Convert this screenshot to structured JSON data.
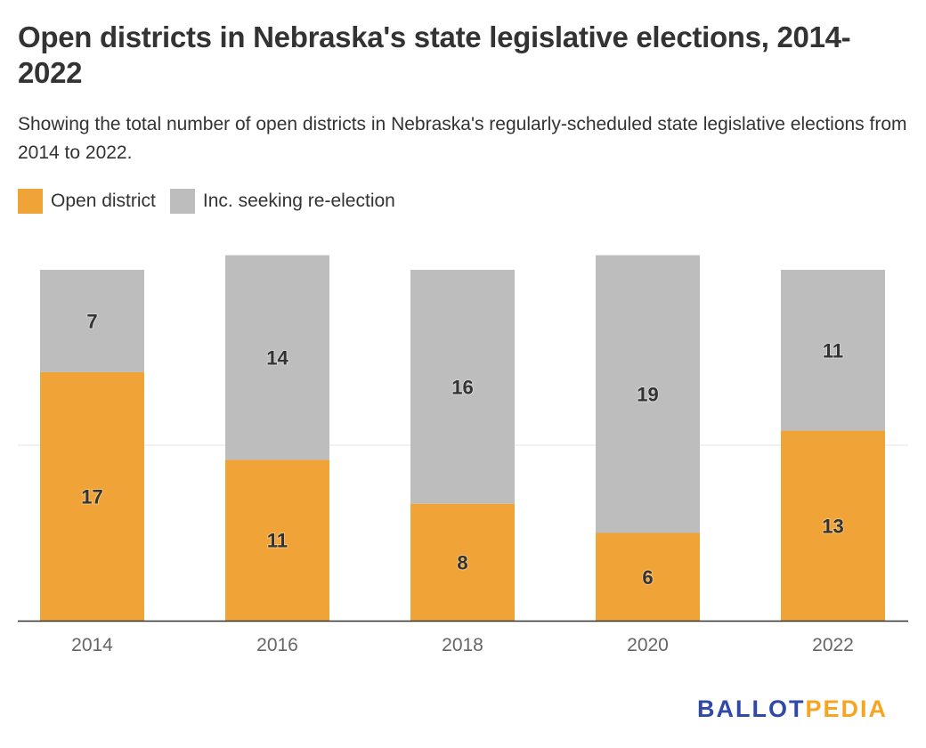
{
  "title": "Open districts in Nebraska's state legislative elections, 2014-2022",
  "subtitle": "Showing the total number of open districts in Nebraska's regularly-scheduled state legislative elections from 2014 to 2022.",
  "logo": {
    "part1": "BALLOT",
    "part2": "PEDIA",
    "color1": "#3049a8",
    "color2": "#f4a622"
  },
  "chart_data": {
    "type": "bar",
    "stacked": true,
    "categories": [
      "2014",
      "2016",
      "2018",
      "2020",
      "2022"
    ],
    "series": [
      {
        "name": "Open district",
        "color": "#f0a336",
        "values": [
          17,
          11,
          8,
          6,
          13
        ]
      },
      {
        "name": "Inc. seeking re-election",
        "color": "#bdbdbd",
        "values": [
          7,
          14,
          16,
          19,
          11
        ]
      }
    ],
    "ylim": [
      0,
      24
    ],
    "gridlines": [
      12
    ],
    "grid": true,
    "legend": "top-left",
    "data_labels": true
  }
}
